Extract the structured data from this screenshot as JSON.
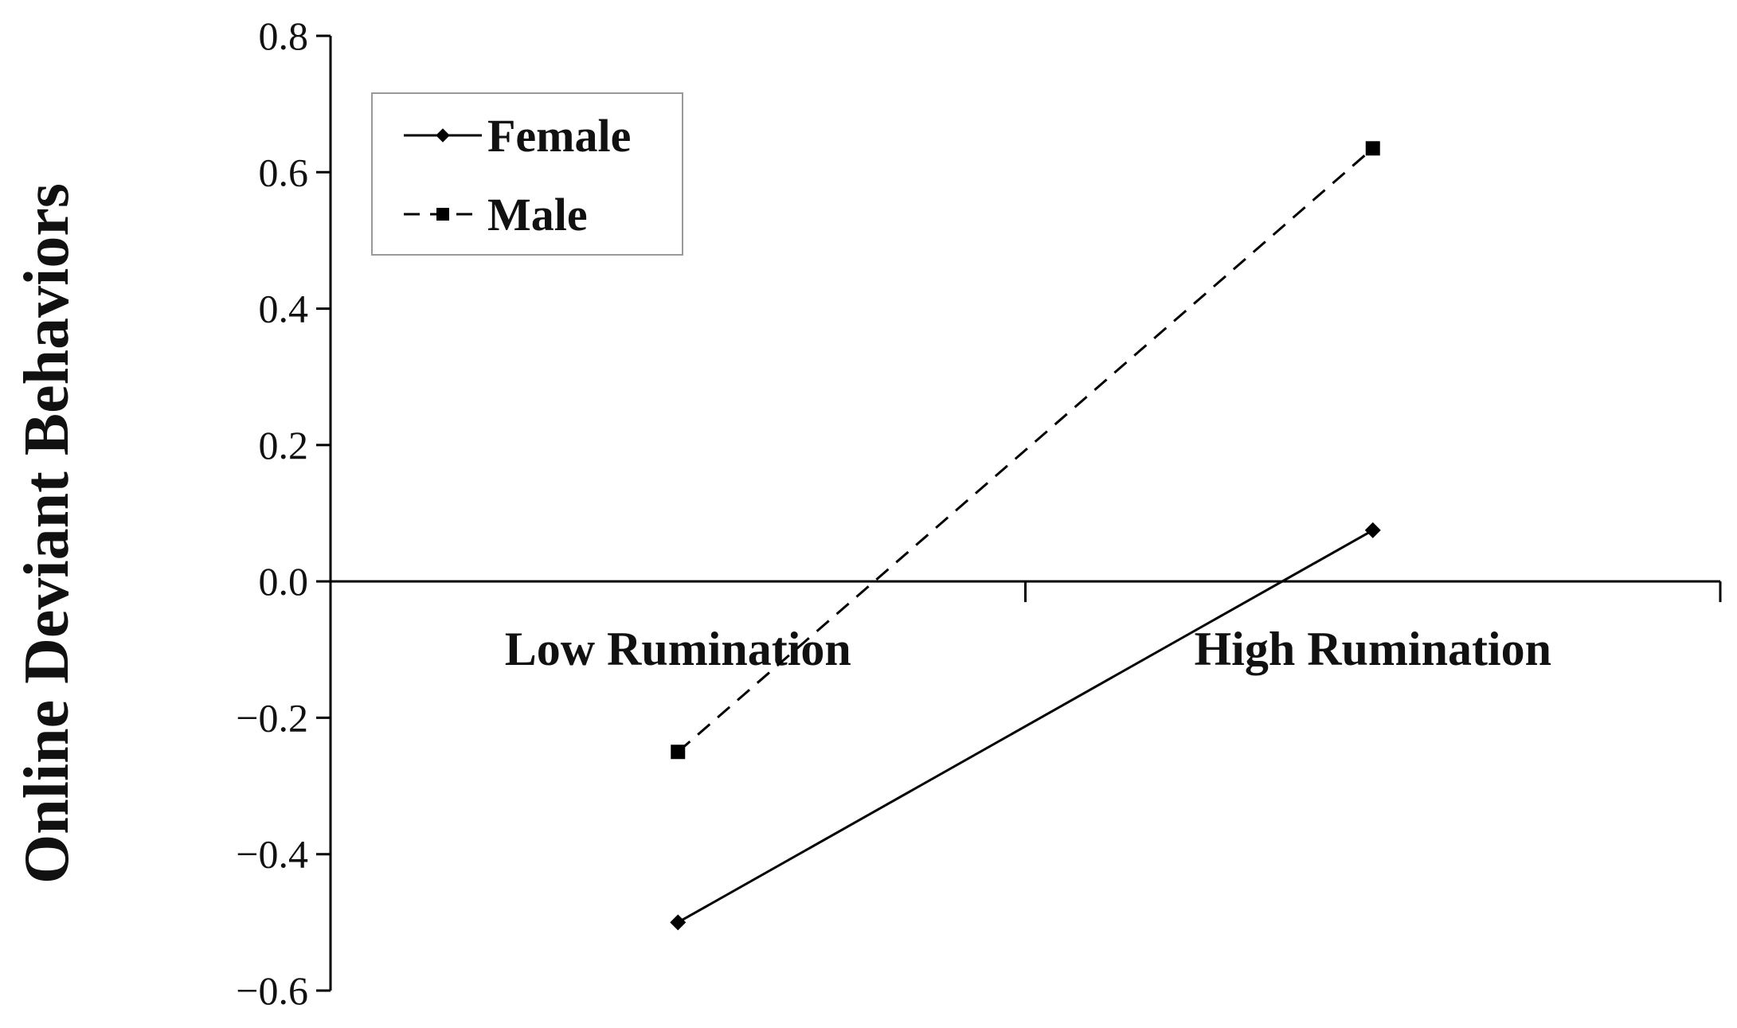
{
  "chart_data": {
    "type": "line",
    "categories": [
      "Low Rumination",
      "High Rumination"
    ],
    "ylabel": "Online Deviant Behaviors",
    "xlabel": "",
    "ylim": [
      -0.6,
      0.8
    ],
    "yticks": [
      0.8,
      0.6,
      0.4,
      0.2,
      0.0,
      -0.2,
      -0.4,
      -0.6
    ],
    "ytick_labels": [
      "0.8",
      "0.6",
      "0.4",
      "0.2",
      "0.0",
      "−0.2",
      "−0.4",
      "−0.6"
    ],
    "grid": false,
    "legend_position": "top-left",
    "series": [
      {
        "name": "Female",
        "values": [
          -0.5,
          0.075
        ],
        "line_style": "solid",
        "marker": "diamond",
        "color": "#000000"
      },
      {
        "name": "Male",
        "values": [
          -0.25,
          0.635
        ],
        "line_style": "dashed",
        "marker": "square",
        "color": "#000000"
      }
    ]
  }
}
